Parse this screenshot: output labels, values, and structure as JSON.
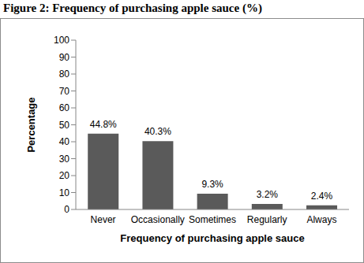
{
  "chart_data": {
    "type": "bar",
    "title": "Figure 2: Frequency of purchasing apple sauce (%)",
    "x_label": "Frequency of purchasing apple sauce",
    "y_label": "Percentage",
    "categories": [
      "Never",
      "Occasionally",
      "Sometimes",
      "Regularly",
      "Always"
    ],
    "values": [
      44.8,
      40.3,
      9.3,
      3.2,
      2.4
    ],
    "value_labels": [
      "44.8%",
      "40.3%",
      "9.3%",
      "3.2%",
      "2.4%"
    ],
    "color": "#5a5a5a",
    "ylim": [
      0,
      100
    ],
    "yticks": [
      0,
      10,
      20,
      30,
      40,
      50,
      60,
      70,
      80,
      90,
      100
    ],
    "grid": false,
    "data_labels": true
  }
}
